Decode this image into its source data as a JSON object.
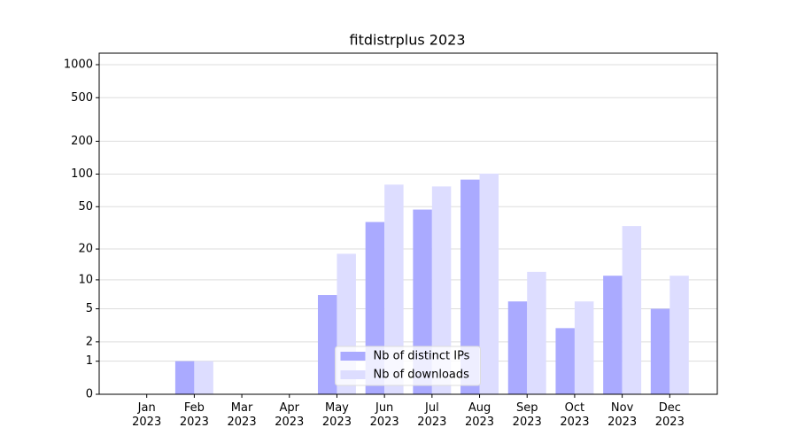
{
  "chart_data": {
    "type": "bar",
    "title": "fitdistrplus 2023",
    "categories": [
      "Jan 2023",
      "Feb 2023",
      "Mar 2023",
      "Apr 2023",
      "May 2023",
      "Jun 2023",
      "Jul 2023",
      "Aug 2023",
      "Sep 2023",
      "Oct 2023",
      "Nov 2023",
      "Dec 2023"
    ],
    "series": [
      {
        "name": "Nb of distinct IPs",
        "color": "#aaaaff",
        "values": [
          0,
          1,
          0,
          0,
          7,
          36,
          47,
          89,
          6,
          3,
          11,
          5
        ]
      },
      {
        "name": "Nb of downloads",
        "color": "#ddddff",
        "values": [
          0,
          1,
          0,
          0,
          18,
          80,
          77,
          101,
          12,
          6,
          33,
          11
        ]
      }
    ],
    "yscale": "log1p",
    "ylim": [
      0,
      1273
    ],
    "yticks": [
      0,
      1,
      2,
      5,
      10,
      20,
      50,
      100,
      200,
      500,
      1000
    ],
    "grid": true,
    "legend": "lower center"
  }
}
